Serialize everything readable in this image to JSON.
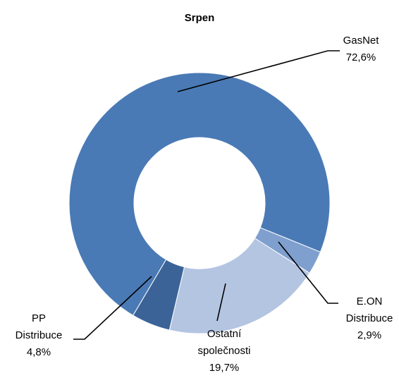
{
  "chart_data": {
    "type": "donut",
    "title": "Srpen",
    "categories": [
      "E.ON Distribuce",
      "Ostatní společnosti",
      "PP Distribuce",
      "GasNet"
    ],
    "values": [
      2.9,
      19.7,
      4.8,
      72.6
    ],
    "value_labels": [
      "2,9%",
      "19,7%",
      "4,8%",
      "72,6%"
    ],
    "colors": [
      "#7f9fcf",
      "#b4c5e2",
      "#3b6397",
      "#4a7ab5"
    ]
  }
}
